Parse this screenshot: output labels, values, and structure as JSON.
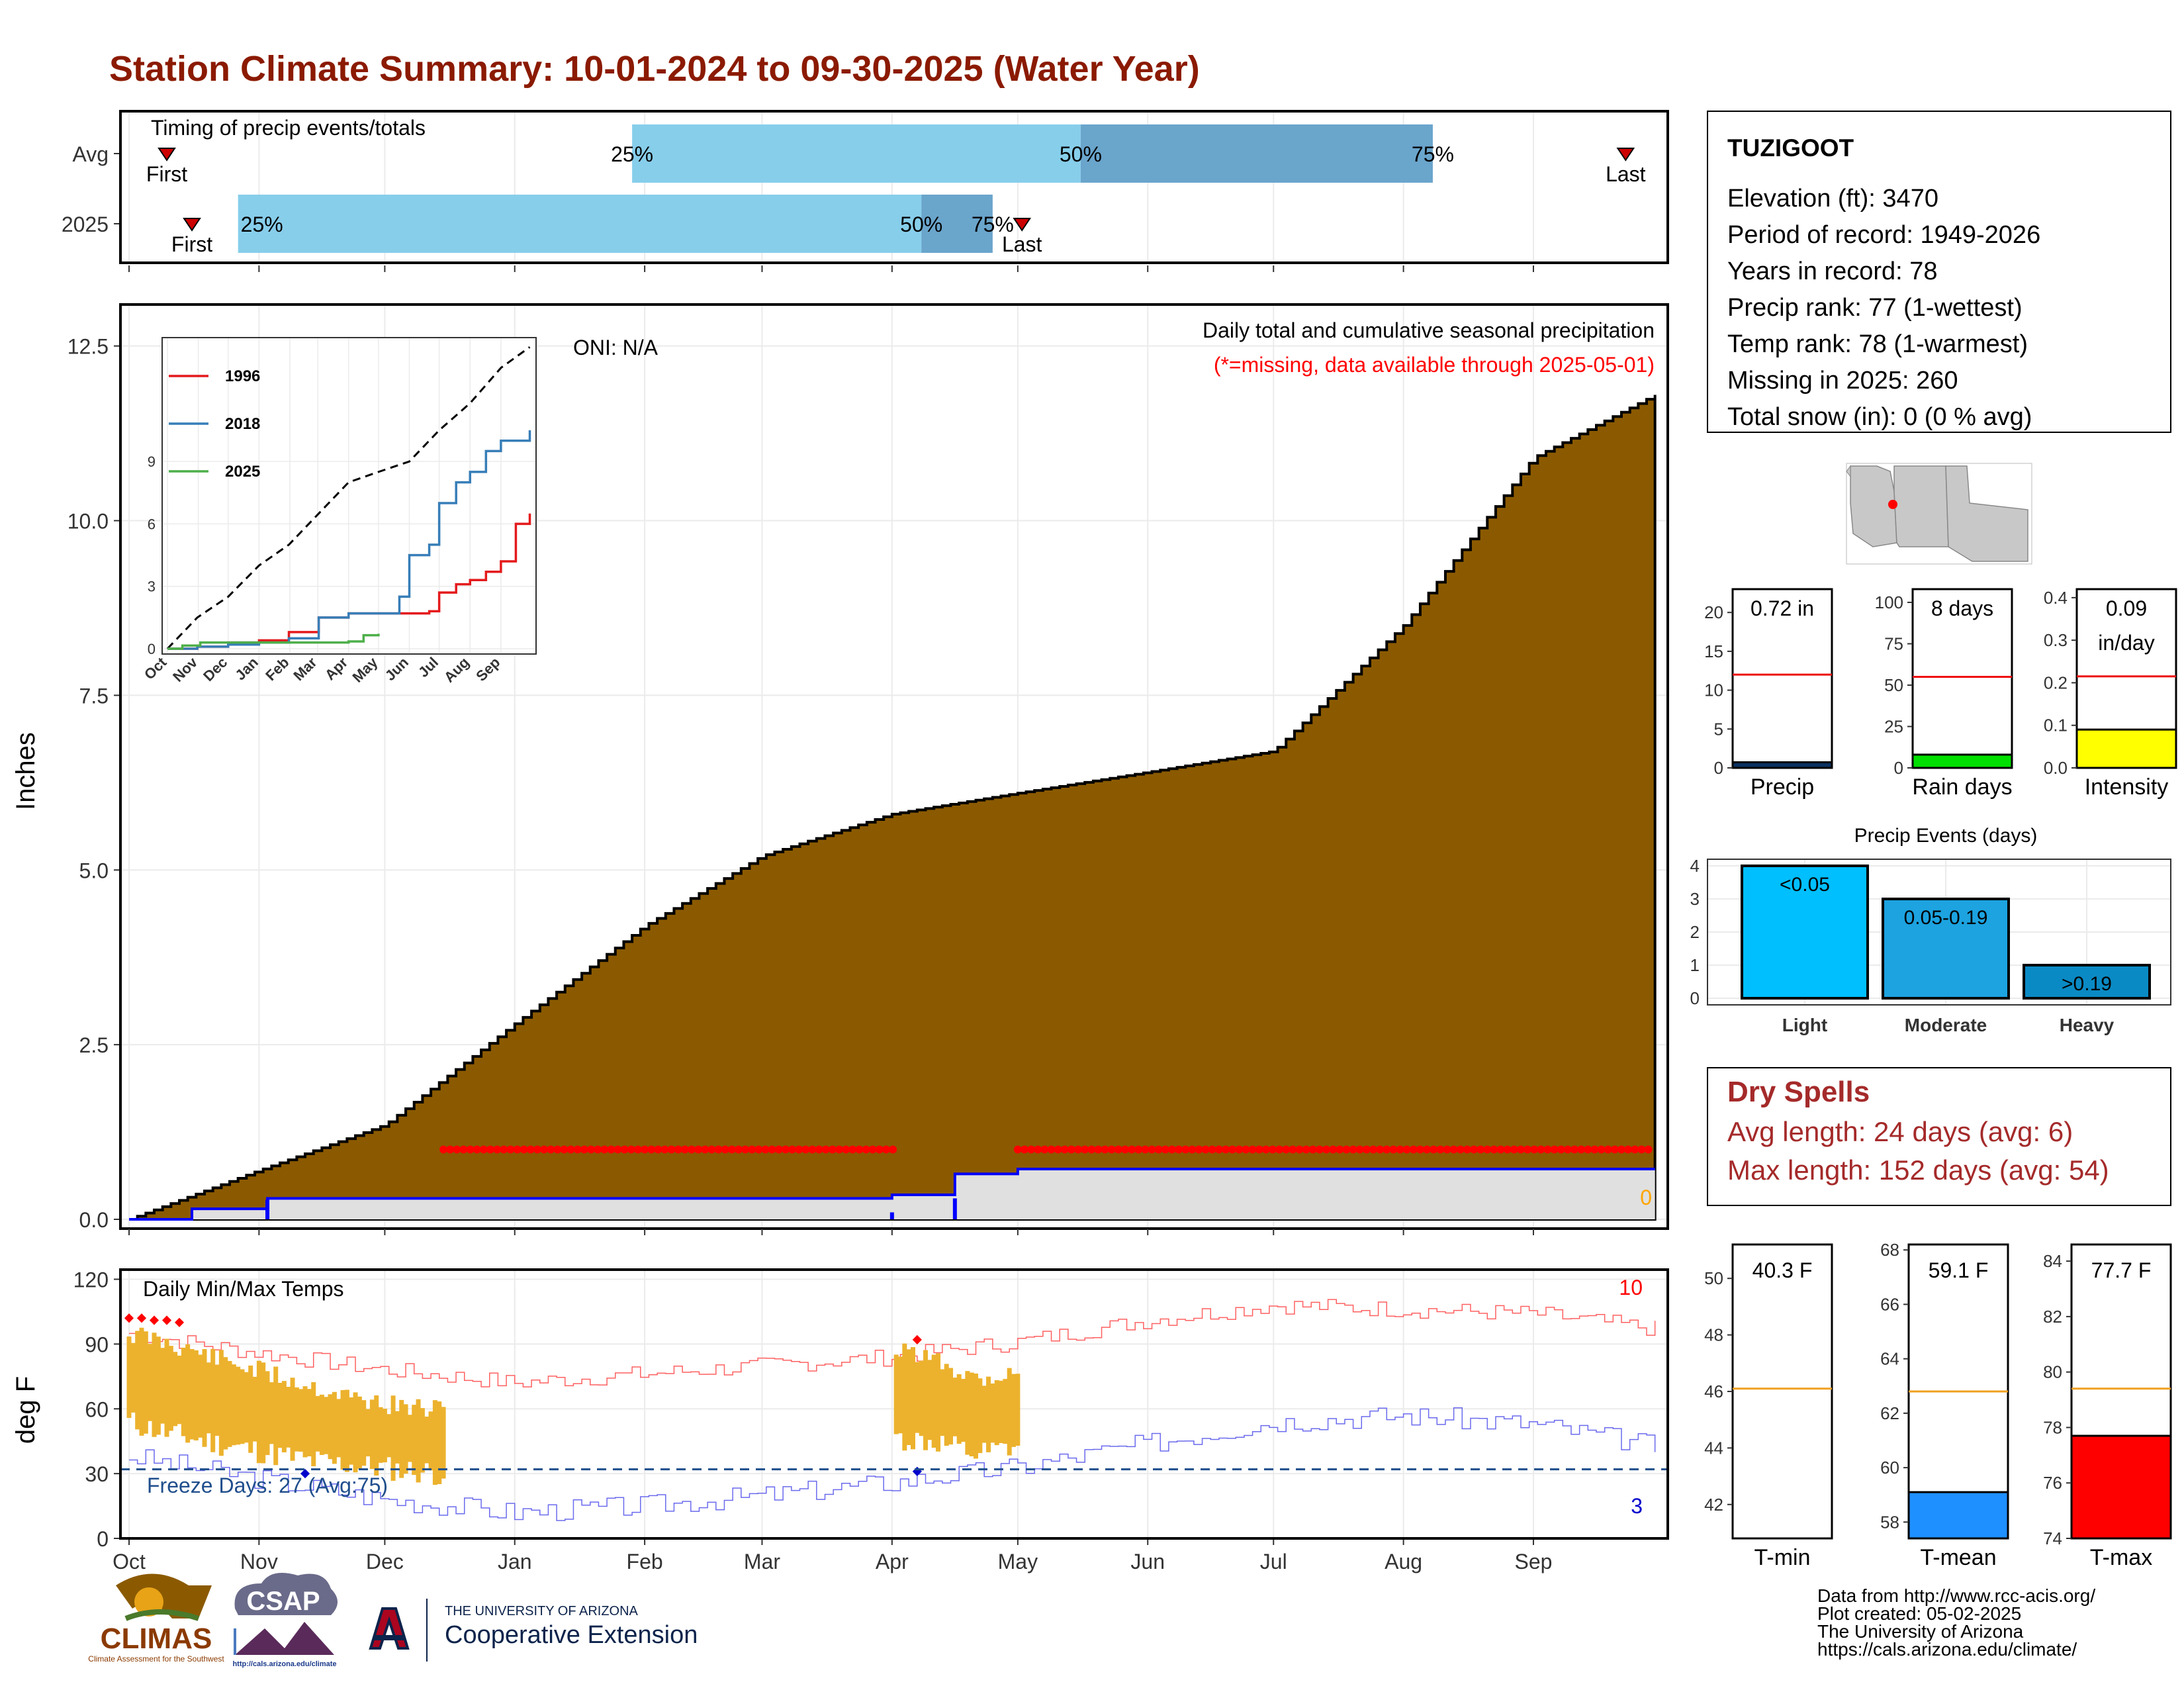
{
  "title": "Station Climate Summary: 10-01-2024 to 09-30-2025 (Water Year)",
  "timing": {
    "label": "Timing of precip events/totals",
    "rows": [
      {
        "label": "Avg",
        "first_day": 9,
        "p25": 120,
        "p50": 227,
        "p75": 311,
        "last_day": 357,
        "first_label": "First",
        "last_label": "Last"
      },
      {
        "label": "2025",
        "first_day": 15,
        "p25": 26,
        "p50": 189,
        "p75": 206,
        "last_day": 213,
        "first_label": "First",
        "last_label": "Last"
      }
    ],
    "pct_labels": [
      "25%",
      "50%",
      "75%"
    ]
  },
  "chart_data": [
    {
      "type": "area",
      "name": "precip",
      "ylabel": "Inches",
      "annotation_title": "Daily total and cumulative seasonal precipitation",
      "annotation_missing": "(*=missing, data available through 2025-05-01)",
      "oni": "ONI: N/A",
      "ylim": [
        0,
        13
      ],
      "yticks": [
        "0.0",
        "2.5",
        "5.0",
        "7.5",
        "10.0",
        "12.5"
      ],
      "xticks": [
        "Oct",
        "Nov",
        "Dec",
        "Jan",
        "Feb",
        "Mar",
        "Apr",
        "May",
        "Jun",
        "Jul",
        "Aug",
        "Sep"
      ],
      "cumulative_avg": {
        "x": [
          0,
          31,
          61,
          92,
          123,
          151,
          182,
          212,
          243,
          273,
          304,
          335,
          364
        ],
        "y": [
          0.0,
          0.7,
          1.35,
          2.8,
          4.2,
          5.2,
          5.8,
          6.1,
          6.4,
          6.7,
          8.5,
          10.9,
          11.8
        ]
      },
      "cumulative_2025": {
        "x": [
          0,
          15,
          33,
          182,
          197,
          212
        ],
        "y": [
          0.0,
          0.15,
          0.3,
          0.35,
          0.65,
          0.72
        ]
      },
      "missing_periods": [
        [
          75,
          183
        ],
        [
          212,
          364
        ]
      ],
      "missing_count_label": "0",
      "inset": {
        "yticks": [
          "0",
          "3",
          "6",
          "9"
        ],
        "xticks": [
          "Oct",
          "Nov",
          "Dec",
          "Jan",
          "Feb",
          "Mar",
          "Apr",
          "May",
          "Jun",
          "Jul",
          "Aug",
          "Sep"
        ],
        "avg": {
          "x": [
            0,
            30,
            61,
            92,
            122,
            152,
            182,
            212,
            243,
            273,
            304,
            335,
            364
          ],
          "y": [
            0,
            1.5,
            2.5,
            4.0,
            5.0,
            6.5,
            8.0,
            8.5,
            9.0,
            10.5,
            11.8,
            13.5,
            14.5
          ]
        },
        "series": [
          {
            "name": "1996",
            "color": "#e41a1c",
            "x": [
              0,
              30,
              61,
              92,
              122,
              152,
              182,
              212,
              243,
              263,
              273,
              290,
              304,
              320,
              335,
              350,
              364
            ],
            "y": [
              0,
              0.1,
              0.3,
              0.4,
              0.8,
              1.5,
              1.7,
              1.7,
              1.7,
              1.8,
              2.7,
              3.1,
              3.3,
              3.7,
              4.2,
              6.0,
              6.5
            ]
          },
          {
            "name": "2018",
            "color": "#377eb8",
            "x": [
              0,
              30,
              61,
              92,
              122,
              152,
              182,
              212,
              233,
              243,
              263,
              273,
              290,
              304,
              320,
              335,
              364
            ],
            "y": [
              0,
              0.1,
              0.2,
              0.3,
              0.5,
              1.5,
              1.7,
              1.7,
              2.5,
              4.5,
              5.0,
              7.0,
              8.0,
              8.5,
              9.5,
              10.0,
              10.5
            ]
          },
          {
            "name": "2025",
            "color": "#4daf4a",
            "x": [
              0,
              15,
              33,
              182,
              197,
              212
            ],
            "y": [
              0,
              0.15,
              0.3,
              0.35,
              0.65,
              0.72
            ]
          }
        ]
      }
    },
    {
      "type": "line",
      "name": "temps",
      "title": "Daily Min/Max Temps",
      "ylabel": "deg F",
      "ylim": [
        0,
        122
      ],
      "yticks": [
        "0",
        "30",
        "60",
        "90",
        "120"
      ],
      "xticks": [
        "Oct",
        "Nov",
        "Dec",
        "Jan",
        "Feb",
        "Mar",
        "Apr",
        "May",
        "Jun",
        "Jul",
        "Aug",
        "Sep"
      ],
      "freeze_line": 32,
      "freeze_label": "Freeze Days: 27 (Avg:75)",
      "max_count_label": "10",
      "min_count_label": "3",
      "avg_max": {
        "x": [
          0,
          30,
          61,
          92,
          122,
          152,
          182,
          212,
          243,
          273,
          304,
          335,
          364
        ],
        "y": [
          95,
          86,
          78,
          72,
          76,
          80,
          84,
          91,
          101,
          108,
          106,
          104,
          97
        ]
      },
      "avg_min": {
        "x": [
          0,
          30,
          61,
          92,
          122,
          152,
          182,
          212,
          243,
          273,
          304,
          335,
          364
        ],
        "y": [
          38,
          28,
          18,
          12,
          15,
          20,
          26,
          33,
          44,
          54,
          57,
          53,
          43
        ]
      },
      "obs_periods": [
        {
          "start": 0,
          "end": 75,
          "max": [
            100,
            95,
            88,
            82,
            76,
            70,
            66,
            64
          ],
          "min": [
            48,
            42,
            38,
            34,
            30,
            28,
            26,
            24
          ]
        },
        {
          "start": 183,
          "end": 212,
          "max": [
            92,
            88,
            80,
            82
          ],
          "min": [
            40,
            38,
            32,
            36
          ]
        }
      ]
    },
    {
      "type": "bar",
      "name": "precip-gauges",
      "panels": [
        {
          "label": "Precip",
          "value_text": "0.72 in",
          "value": 0.72,
          "avg": 12,
          "ylim": [
            0,
            23
          ],
          "yticks": [
            "0",
            "5",
            "10",
            "15",
            "20"
          ],
          "fill": "#0a3161"
        },
        {
          "label": "Rain days",
          "value_text": "8 days",
          "value": 8,
          "avg": 55,
          "ylim": [
            0,
            108
          ],
          "yticks": [
            "0",
            "25",
            "50",
            "75",
            "100"
          ],
          "fill": "#00e000"
        },
        {
          "label": "Intensity",
          "value_text": "0.09",
          "value_text2": "in/day",
          "value": 0.09,
          "avg": 0.215,
          "ylim": [
            0,
            0.42
          ],
          "yticks": [
            "0.0",
            "0.1",
            "0.2",
            "0.3",
            "0.4"
          ],
          "fill": "#ffff00"
        }
      ]
    },
    {
      "type": "bar",
      "name": "precip-events",
      "title": "Precip Events (days)",
      "categories": [
        "Light",
        "Moderate",
        "Heavy"
      ],
      "values": [
        4,
        3,
        1
      ],
      "bar_labels": [
        "<0.05",
        "0.05-0.19",
        ">0.19"
      ],
      "colors": [
        "#00bfff",
        "#1ca3e0",
        "#0a8ac4"
      ],
      "ylim": [
        0,
        4.2
      ],
      "yticks": [
        "0",
        "1",
        "2",
        "3",
        "4"
      ]
    },
    {
      "type": "bar",
      "name": "temp-gauges",
      "panels": [
        {
          "label": "T-min",
          "value_text": "40.3 F",
          "value": 40.3,
          "avg": 46.1,
          "ylim": [
            40.8,
            51.2
          ],
          "yticks": [
            "42",
            "44",
            "46",
            "48",
            "50"
          ],
          "fill": "#ffffff"
        },
        {
          "label": "T-mean",
          "value_text": "59.1 F",
          "value": 59.1,
          "avg": 62.8,
          "ylim": [
            57.4,
            68.2
          ],
          "yticks": [
            "58",
            "60",
            "62",
            "64",
            "66",
            "68"
          ],
          "fill": "#1e90ff"
        },
        {
          "label": "T-max",
          "value_text": "77.7 F",
          "value": 77.7,
          "avg": 79.4,
          "ylim": [
            74,
            84.6
          ],
          "yticks": [
            "74",
            "76",
            "78",
            "80",
            "82",
            "84"
          ],
          "fill": "#ff0000"
        }
      ]
    }
  ],
  "station": {
    "name": "TUZIGOOT",
    "lines": [
      "Elevation (ft): 3470",
      "Period of record: 1949-2026",
      "Years in record: 78",
      "Precip rank: 77 (1-wettest)",
      "Temp rank: 78 (1-warmest)",
      "Missing in 2025: 260",
      "Total snow (in): 0 (0 % avg)"
    ]
  },
  "dry_spells": {
    "title": "Dry Spells",
    "lines": [
      "Avg length: 24 days (avg: 6)",
      "Max length: 152 days (avg: 54)"
    ]
  },
  "logos": {
    "climas": "CLIMAS",
    "climas_sub": "Climate Assessment for the Southwest",
    "csap": "CSAP",
    "csap_url": "http://cals.arizona.edu/climate",
    "ua_small": "THE UNIVERSITY OF ARIZONA",
    "ua_big": "Cooperative Extension"
  },
  "credits": [
    "Data from http://www.rcc-acis.org/",
    "Plot created: 05-02-2025",
    "The University of Arizona",
    "https://cals.arizona.edu/climate/"
  ],
  "colors": {
    "title": "#8b1a00",
    "precip_fill": "#8b5a00",
    "missing": "#ff0000",
    "light_blue": "#87ceeb",
    "mid_blue": "#6aa5cc",
    "dry": "#a52a2a"
  }
}
